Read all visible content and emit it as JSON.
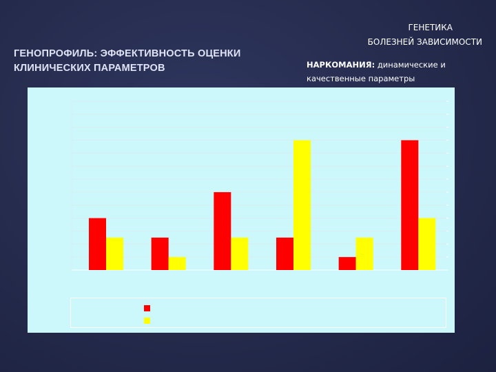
{
  "slide": {
    "left_title": "ГЕНОПРОФИЛЬ: ЭФФЕКТИВНОСТЬ ОЦЕНКИ КЛИНИЧЕСКИХ ПАРАМЕТРОВ",
    "right_title_line1": "ГЕНЕТИКА",
    "right_title_line2": "БОЛЕЗНЕЙ ЗАВИСИМОСТИ",
    "subtitle_bold": "НАРКОМАНИЯ:",
    "subtitle_rest": " динамические и качественные параметры"
  },
  "colors": {
    "panel_bg": "#ccf7fb",
    "series1": "#ff0000",
    "series2": "#ffff00",
    "grid": "#d9eef0"
  },
  "chart_data": {
    "type": "bar",
    "categories": [
      "",
      "",
      "",
      "",
      "",
      ""
    ],
    "ylim": [
      0,
      13
    ],
    "series": [
      {
        "values": [
          4,
          2.5,
          6,
          2.5,
          1,
          10
        ]
      },
      {
        "values": [
          2.5,
          1,
          2.5,
          10,
          2.5,
          4
        ]
      }
    ],
    "legend_placement": "bottom",
    "grid": true
  }
}
